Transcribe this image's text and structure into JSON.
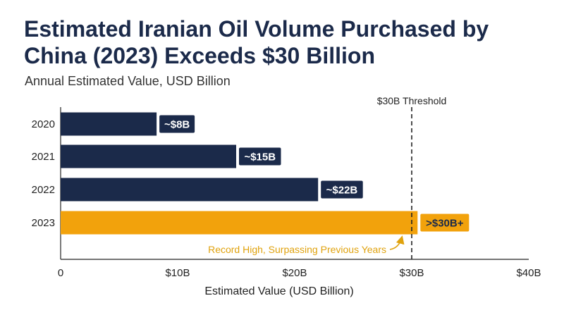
{
  "title_part1": "Estimated Iranian Oil Volume Purchased by China (2023) ",
  "title_part2": "Exceeds $30 Billion",
  "subtitle": "Annual Estimated Value, USD Billion",
  "colors": {
    "bar_default": "#1b2a4a",
    "bar_highlight": "#f2a20c",
    "threshold_line": "#222222",
    "annotation": "#e0a20d"
  },
  "chart_data": {
    "type": "bar",
    "orientation": "horizontal",
    "categories": [
      "2020",
      "2021",
      "2022",
      "2023"
    ],
    "values": [
      8.2,
      15,
      22,
      30.5
    ],
    "data_labels": [
      "~$8B",
      "~$15B",
      "~$22B",
      ">$30B+"
    ],
    "highlight_index": 3,
    "xlim": [
      0,
      40
    ],
    "x_ticks": [
      0,
      10,
      20,
      30,
      40
    ],
    "x_tick_labels": [
      "0",
      "$10B",
      "$20B",
      "$30B",
      "$40B"
    ],
    "xlabel": "Estimated Value (USD Billion)",
    "grid": false,
    "threshold": {
      "value": 30,
      "label": "$30B Threshold"
    },
    "annotation": {
      "text": "Record High, Surpassing Previous Years",
      "target_index": 3
    }
  }
}
